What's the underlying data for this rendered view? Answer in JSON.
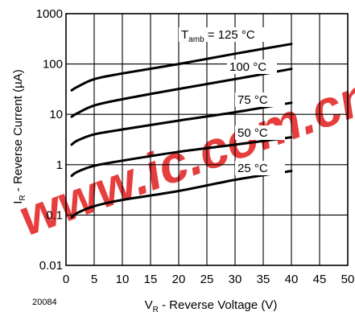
{
  "figure_code": "20084",
  "watermark": "www.ic.com.cn",
  "chart_data": {
    "type": "line",
    "xlabel": {
      "main": "V",
      "sub": "R",
      "rest": " -  Reverse Voltage  (V)"
    },
    "ylabel": {
      "main": "I",
      "sub": "R",
      "rest": " -  Reverse Current (µA)"
    },
    "xlim": [
      0,
      50
    ],
    "ylim": [
      0.01,
      1000
    ],
    "y_scale": "log",
    "grid": true,
    "x_ticks": [
      "0",
      "5",
      "10",
      "15",
      "20",
      "25",
      "30",
      "35",
      "40",
      "45",
      "50"
    ],
    "y_ticks": [
      "0.01",
      "0.1",
      "1",
      "10",
      "100",
      "1000"
    ],
    "series": [
      {
        "name": "125 °C",
        "label_prefix": "T",
        "label_sub": "amb",
        "label_eq": " = ",
        "x": [
          1,
          2,
          5,
          10,
          20,
          30,
          40
        ],
        "y": [
          30,
          35,
          50,
          65,
          100,
          160,
          250
        ]
      },
      {
        "name": "100 °C",
        "x": [
          1,
          2,
          5,
          10,
          20,
          30,
          40
        ],
        "y": [
          9,
          10.5,
          15,
          20,
          32,
          50,
          80
        ]
      },
      {
        "name": "75 °C",
        "x": [
          1,
          2,
          5,
          10,
          20,
          30,
          40
        ],
        "y": [
          2.5,
          3,
          4,
          5,
          7.5,
          11,
          17
        ]
      },
      {
        "name": "50 °C",
        "x": [
          1,
          2,
          5,
          10,
          20,
          30,
          40
        ],
        "y": [
          0.6,
          0.72,
          0.95,
          1.2,
          1.8,
          2.5,
          3.5
        ]
      },
      {
        "name": "25 °C",
        "x": [
          1,
          2,
          5,
          10,
          20,
          30,
          40
        ],
        "y": [
          0.09,
          0.11,
          0.15,
          0.2,
          0.3,
          0.5,
          0.75
        ]
      }
    ]
  }
}
